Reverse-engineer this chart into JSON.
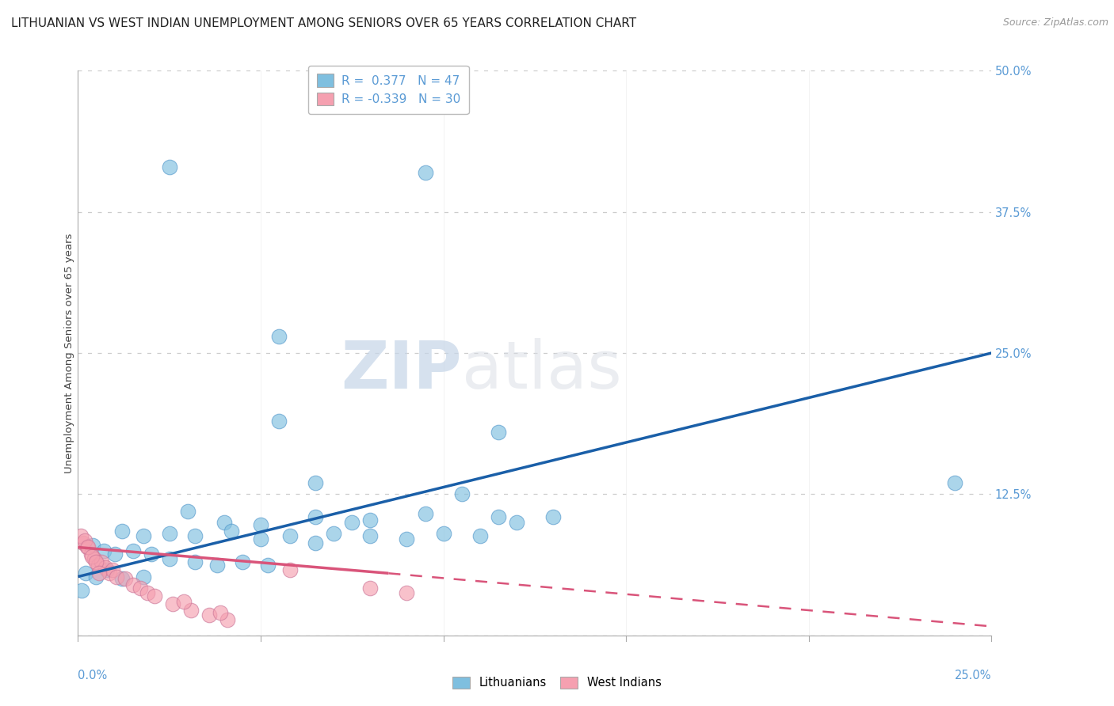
{
  "title": "LITHUANIAN VS WEST INDIAN UNEMPLOYMENT AMONG SENIORS OVER 65 YEARS CORRELATION CHART",
  "source": "Source: ZipAtlas.com",
  "ylabel": "Unemployment Among Seniors over 65 years",
  "ytick_labels": [
    "",
    "12.5%",
    "25.0%",
    "37.5%",
    "50.0%"
  ],
  "ytick_values": [
    0,
    12.5,
    25.0,
    37.5,
    50.0
  ],
  "xlim": [
    0,
    25
  ],
  "ylim": [
    0,
    50
  ],
  "legend_blue_r": "0.377",
  "legend_blue_n": "47",
  "legend_pink_r": "-0.339",
  "legend_pink_n": "30",
  "legend_labels": [
    "Lithuanians",
    "West Indians"
  ],
  "blue_color": "#7fbfdf",
  "pink_color": "#f5a0b0",
  "blue_line_color": "#1a5fa8",
  "pink_line_color": "#d9547a",
  "background_color": "#ffffff",
  "watermark_zip": "ZIP",
  "watermark_atlas": "atlas",
  "title_fontsize": 11,
  "source_fontsize": 9,
  "blue_points": [
    [
      2.5,
      41.5
    ],
    [
      9.5,
      41.0
    ],
    [
      5.5,
      26.5
    ],
    [
      5.5,
      19.0
    ],
    [
      11.5,
      18.0
    ],
    [
      6.5,
      13.5
    ],
    [
      10.5,
      12.5
    ],
    [
      3.0,
      11.0
    ],
    [
      4.0,
      10.0
    ],
    [
      5.0,
      9.8
    ],
    [
      6.5,
      10.5
    ],
    [
      7.5,
      10.0
    ],
    [
      8.0,
      10.2
    ],
    [
      9.5,
      10.8
    ],
    [
      11.5,
      10.5
    ],
    [
      12.0,
      10.0
    ],
    [
      13.0,
      10.5
    ],
    [
      1.2,
      9.2
    ],
    [
      1.8,
      8.8
    ],
    [
      2.5,
      9.0
    ],
    [
      3.2,
      8.8
    ],
    [
      4.2,
      9.2
    ],
    [
      5.0,
      8.5
    ],
    [
      5.8,
      8.8
    ],
    [
      6.5,
      8.2
    ],
    [
      7.0,
      9.0
    ],
    [
      8.0,
      8.8
    ],
    [
      9.0,
      8.5
    ],
    [
      10.0,
      9.0
    ],
    [
      11.0,
      8.8
    ],
    [
      0.4,
      8.0
    ],
    [
      0.7,
      7.5
    ],
    [
      1.0,
      7.2
    ],
    [
      1.5,
      7.5
    ],
    [
      2.0,
      7.2
    ],
    [
      2.5,
      6.8
    ],
    [
      3.2,
      6.5
    ],
    [
      3.8,
      6.2
    ],
    [
      4.5,
      6.5
    ],
    [
      5.2,
      6.2
    ],
    [
      0.2,
      5.5
    ],
    [
      0.5,
      5.2
    ],
    [
      0.8,
      5.8
    ],
    [
      1.2,
      5.0
    ],
    [
      1.8,
      5.2
    ],
    [
      24.0,
      13.5
    ],
    [
      0.1,
      4.0
    ]
  ],
  "pink_points": [
    [
      0.15,
      8.2
    ],
    [
      0.25,
      7.8
    ],
    [
      0.35,
      7.2
    ],
    [
      0.45,
      6.8
    ],
    [
      0.55,
      6.2
    ],
    [
      0.65,
      6.5
    ],
    [
      0.75,
      6.0
    ],
    [
      0.85,
      5.5
    ],
    [
      0.95,
      5.8
    ],
    [
      1.05,
      5.2
    ],
    [
      1.3,
      5.0
    ],
    [
      1.5,
      4.5
    ],
    [
      1.7,
      4.2
    ],
    [
      1.9,
      3.8
    ],
    [
      2.1,
      3.5
    ],
    [
      2.6,
      2.8
    ],
    [
      3.1,
      2.2
    ],
    [
      3.6,
      1.8
    ],
    [
      4.1,
      1.4
    ],
    [
      5.8,
      5.8
    ],
    [
      8.0,
      4.2
    ],
    [
      0.08,
      8.8
    ],
    [
      0.18,
      8.4
    ],
    [
      0.28,
      7.8
    ],
    [
      0.38,
      7.0
    ],
    [
      0.48,
      6.5
    ],
    [
      0.58,
      5.5
    ],
    [
      2.9,
      3.0
    ],
    [
      3.9,
      2.0
    ],
    [
      9.0,
      3.8
    ]
  ],
  "blue_line_pts": [
    [
      0.0,
      5.2
    ],
    [
      25.0,
      25.0
    ]
  ],
  "pink_line_solid_pts": [
    [
      0.0,
      7.8
    ],
    [
      8.5,
      5.5
    ]
  ],
  "pink_line_dashed_pts": [
    [
      8.5,
      5.5
    ],
    [
      25.0,
      0.8
    ]
  ]
}
